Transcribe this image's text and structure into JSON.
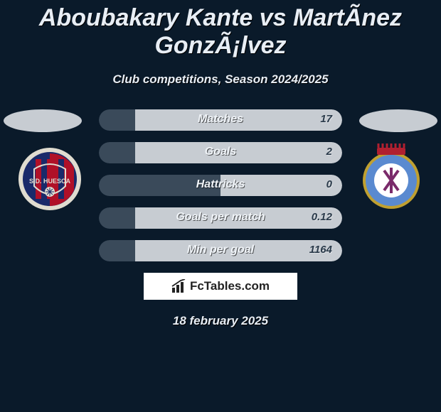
{
  "title": "Aboubakary Kante vs MartÃ­nez GonzÃ¡lvez",
  "subtitle": "Club competitions, Season 2024/2025",
  "date": "18 february 2025",
  "brand": "FcTables.com",
  "colors": {
    "bg": "#0a1a2a",
    "row_left": "#3a4a5a",
    "row_right": "#c7ccd2",
    "text_light": "#e8eef5",
    "text_dark": "#2a3a4a",
    "oval": "#c7ccd2"
  },
  "left_badge": {
    "name": "S.D. Huesca",
    "circle_fill": "#1a2a6a",
    "stripe_fill": "#b01028",
    "border": "#e0dcd0"
  },
  "right_badge": {
    "name": "Deportivo La Coruña",
    "circle_fill": "#5a8ad0",
    "inner_fill": "#ffffff",
    "border": "#c0a030"
  },
  "rows": [
    {
      "label": "Matches",
      "left": "",
      "right": "17",
      "left_pct": 15,
      "right_pct": 85
    },
    {
      "label": "Goals",
      "left": "",
      "right": "2",
      "left_pct": 15,
      "right_pct": 85
    },
    {
      "label": "Hattricks",
      "left": "",
      "right": "0",
      "left_pct": 50,
      "right_pct": 50
    },
    {
      "label": "Goals per match",
      "left": "",
      "right": "0.12",
      "left_pct": 15,
      "right_pct": 85
    },
    {
      "label": "Min per goal",
      "left": "",
      "right": "1164",
      "left_pct": 15,
      "right_pct": 85
    }
  ]
}
